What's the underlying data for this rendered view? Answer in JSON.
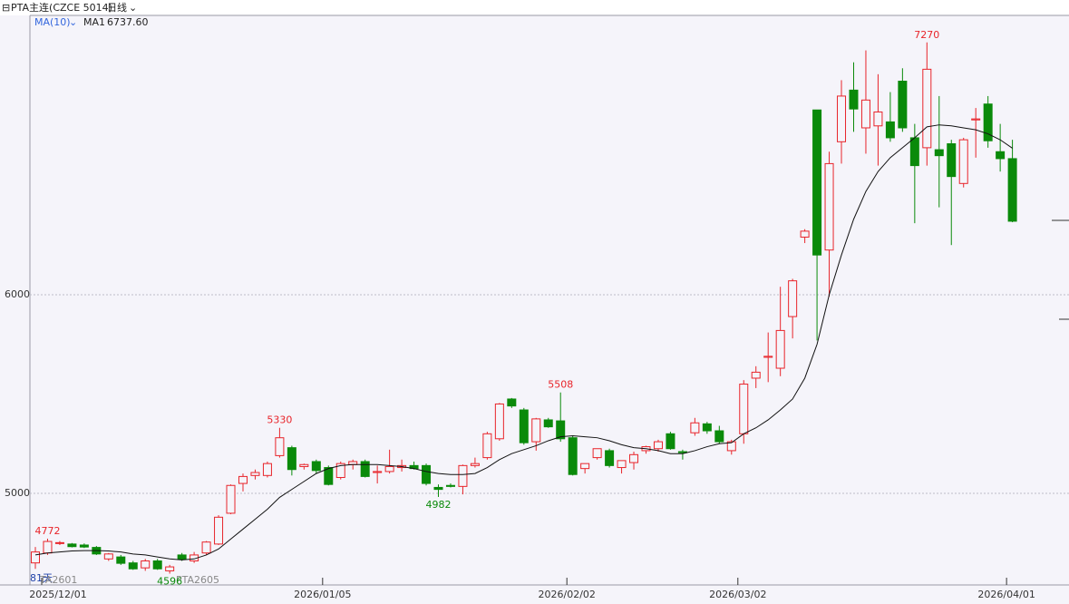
{
  "chart_data": {
    "type": "candlestick",
    "title": "PTA主连(CZCE 5014)",
    "period": "日线",
    "indicator": "MA(10)",
    "notes": [
      "81天",
      "TA2601",
      "PTA2605"
    ],
    "up_color": "#e8242a",
    "down_color": "#0a8a0a",
    "grid": true,
    "ylim": [
      4539,
      7406
    ],
    "yticks": [
      5000,
      6000
    ],
    "categories": [
      "2025/12/01",
      null,
      null,
      null,
      null,
      null,
      null,
      null,
      null,
      null,
      null,
      null,
      null,
      null,
      null,
      null,
      null,
      null,
      null,
      null,
      null,
      null,
      null,
      "2026/01/05",
      null,
      null,
      null,
      null,
      null,
      null,
      null,
      null,
      null,
      null,
      null,
      null,
      null,
      null,
      null,
      null,
      null,
      null,
      null,
      "2026/02/02",
      null,
      null,
      null,
      null,
      null,
      null,
      null,
      null,
      null,
      null,
      null,
      null,
      null,
      "2026/03/02",
      null,
      null,
      null,
      null,
      null,
      null,
      null,
      null,
      null,
      null,
      null,
      null,
      null,
      null,
      null,
      null,
      null,
      null,
      null,
      null,
      null,
      "2026/04/01",
      null
    ],
    "annotations": [
      "4772",
      "5330",
      "5508",
      "7270",
      "4982",
      "4596"
    ],
    "series": [
      {
        "name": "PTA主连",
        "open": [
          4650,
          4700,
          4750,
          4745,
          4740,
          4728,
          4670,
          4680,
          4650,
          4625,
          4660,
          4610,
          4690,
          4660,
          4700,
          4745,
          4900,
          5050,
          5090,
          5090,
          5190,
          5230,
          5135,
          5160,
          5130,
          5080,
          5145,
          5160,
          5105,
          5110,
          5130,
          5140,
          5140,
          5030,
          5040,
          5035,
          5140,
          5180,
          5275,
          5475,
          5420,
          5260,
          5370,
          5365,
          5280,
          5125,
          5180,
          5215,
          5130,
          5155,
          5215,
          5225,
          5300,
          5210,
          5305,
          5350,
          5315,
          5215,
          5300,
          5580,
          5685,
          5630,
          5890,
          6290,
          6930,
          6225,
          6770,
          7030,
          6840,
          6850,
          6870,
          7075,
          6790,
          6740,
          6730,
          6760,
          6560,
          6880,
          6960,
          6720,
          6685
        ],
        "high": [
          4730,
          4772,
          4760,
          4750,
          4748,
          4735,
          4700,
          4690,
          4660,
          4670,
          4670,
          4640,
          4700,
          4705,
          4760,
          4890,
          5045,
          5100,
          5120,
          5160,
          5330,
          5240,
          5150,
          5170,
          5140,
          5160,
          5170,
          5170,
          5140,
          5220,
          5170,
          5160,
          5150,
          5045,
          5050,
          5145,
          5180,
          5310,
          5455,
          5480,
          5430,
          5380,
          5380,
          5508,
          5290,
          5150,
          5225,
          5225,
          5160,
          5210,
          5240,
          5270,
          5310,
          5220,
          5380,
          5360,
          5340,
          5270,
          5570,
          5640,
          5810,
          6040,
          6080,
          6330,
          6930,
          6720,
          7080,
          7170,
          7230,
          7110,
          7020,
          7140,
          6860,
          7270,
          7000,
          6780,
          6790,
          6940,
          7000,
          6860,
          6780
        ],
        "low": [
          4620,
          4690,
          4740,
          4728,
          4725,
          4690,
          4660,
          4640,
          4615,
          4610,
          4615,
          4596,
          4660,
          4650,
          4690,
          4740,
          4895,
          5010,
          5070,
          5080,
          5180,
          5090,
          5120,
          5100,
          5040,
          5070,
          5120,
          5080,
          5050,
          5100,
          5110,
          5120,
          5040,
          4982,
          5030,
          4995,
          5130,
          5170,
          5265,
          5430,
          5245,
          5215,
          5330,
          5260,
          5090,
          5100,
          5170,
          5130,
          5100,
          5120,
          5200,
          5210,
          5220,
          5170,
          5290,
          5300,
          5250,
          5195,
          5250,
          5530,
          5560,
          5590,
          5780,
          6260,
          5770,
          5990,
          6660,
          6820,
          6710,
          6650,
          6770,
          6820,
          6360,
          6650,
          6440,
          6250,
          6540,
          6690,
          6740,
          6620,
          6365
        ],
        "close": [
          4705,
          4758,
          4752,
          4732,
          4730,
          4695,
          4695,
          4648,
          4620,
          4660,
          4620,
          4630,
          4668,
          4690,
          4755,
          4880,
          5040,
          5085,
          5105,
          5150,
          5280,
          5120,
          5145,
          5115,
          5045,
          5150,
          5160,
          5085,
          5110,
          5135,
          5140,
          5125,
          5050,
          5020,
          5035,
          5140,
          5150,
          5300,
          5450,
          5440,
          5255,
          5375,
          5335,
          5275,
          5095,
          5150,
          5225,
          5140,
          5165,
          5195,
          5235,
          5260,
          5225,
          5205,
          5355,
          5315,
          5260,
          5260,
          5550,
          5610,
          5690,
          5820,
          6070,
          6320,
          6200,
          6660,
          7000,
          6935,
          6980,
          6920,
          6790,
          6840,
          6650,
          7135,
          6700,
          6595,
          6780,
          6885,
          6775,
          6685,
          6370
        ]
      },
      {
        "name": "MA1",
        "color": "#111111",
        "values": [
          4690,
          4700,
          4705,
          4710,
          4712,
          4712,
          4710,
          4705,
          4695,
          4690,
          4680,
          4670,
          4665,
          4670,
          4690,
          4720,
          4770,
          4820,
          4870,
          4920,
          4980,
          5020,
          5060,
          5100,
          5125,
          5140,
          5145,
          5145,
          5145,
          5140,
          5135,
          5125,
          5110,
          5100,
          5095,
          5095,
          5100,
          5130,
          5170,
          5200,
          5220,
          5240,
          5265,
          5285,
          5290,
          5285,
          5280,
          5265,
          5245,
          5230,
          5225,
          5215,
          5200,
          5200,
          5215,
          5235,
          5250,
          5255,
          5300,
          5330,
          5370,
          5420,
          5475,
          5580,
          5750,
          6000,
          6200,
          6380,
          6520,
          6620,
          6690,
          6740,
          6790,
          6845,
          6855,
          6850,
          6840,
          6830,
          6810,
          6780,
          6737.6
        ],
        "latest": {
          "value": 6737.6,
          "label": "6737.60"
        }
      }
    ]
  }
}
